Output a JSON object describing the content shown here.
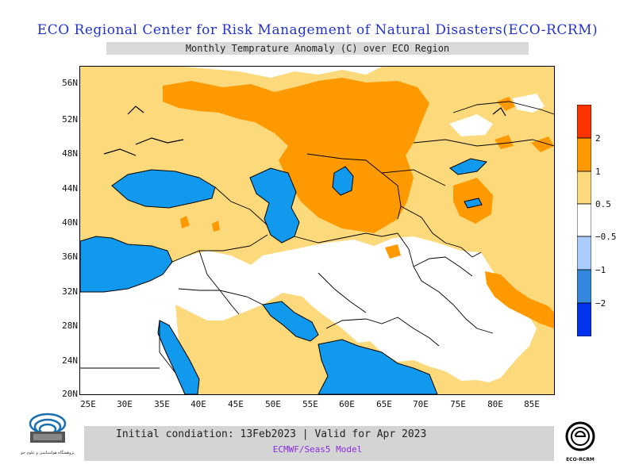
{
  "title": "ECO Regional Center for Risk Management of Natural Disasters(ECO-RCRM)",
  "subtitle": "Monthly Temprature Anomaly (C) over ECO Region",
  "info": {
    "line1": "Initial condiation: 13Feb2023 | Valid for Apr 2023",
    "line2": "ECMWF/Seas5 Model"
  },
  "logos": {
    "left_caption": "پژوهشگاه هواشناسی و علوم جو",
    "right_caption": "ECO-RCRM"
  },
  "axes": {
    "lat_labels": [
      "56N",
      "52N",
      "48N",
      "44N",
      "40N",
      "36N",
      "32N",
      "28N",
      "24N",
      "20N"
    ],
    "lon_labels": [
      "25E",
      "30E",
      "35E",
      "40E",
      "45E",
      "50E",
      "55E",
      "60E",
      "65E",
      "70E",
      "75E",
      "80E",
      "85E"
    ]
  },
  "legend": {
    "labels": [
      "2",
      "1",
      "0.5",
      "−0.5",
      "−1",
      "−2"
    ],
    "colors": {
      "gt2": "#ff3300",
      "1to2": "#ff9900",
      "0.5to1": "#fcd97a",
      "neutral": "#ffffff",
      "m1tom05": "#aaccff",
      "m2tom1": "#3388dd",
      "ltm2": "#0033ee"
    }
  },
  "colors": {
    "title": "#2233cc",
    "water": "#1199ee",
    "warm": "#fcd97a",
    "hot": "#ff9900",
    "model": "#8a2be2"
  }
}
